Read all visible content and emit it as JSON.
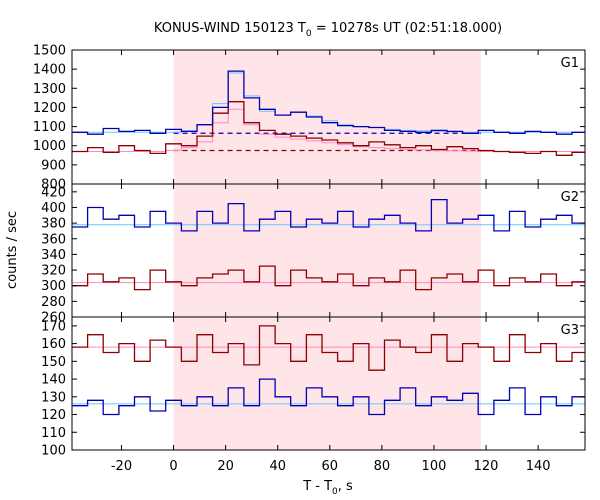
{
  "chart_data": {
    "type": "line",
    "title": "KONUS-WIND 150123 T0 = 10278s UT (02:51:18.000)",
    "title_parts": {
      "before": "KONUS-WIND 150123 T",
      "sub": "0",
      "after": " = 10278s UT (02:51:18.000)"
    },
    "xlabel": "T - T0, s",
    "xlabel_parts": {
      "before": "T - T",
      "sub": "0",
      "after": ", s"
    },
    "ylabel": "counts / sec",
    "xlim": [
      -39,
      158
    ],
    "x_ticks": [
      -20,
      0,
      20,
      40,
      60,
      80,
      100,
      120,
      140
    ],
    "highlight_interval": [
      0,
      118
    ],
    "colors": {
      "blue": "#0000b4",
      "red": "#8b0000",
      "light_blue": "#66c8ff",
      "pink": "#ff88cc",
      "highlight": "#ffe4e8"
    },
    "bin_edges": [
      -39,
      -33,
      -27,
      -21,
      -15,
      -9,
      -3,
      3,
      9,
      15,
      21,
      27,
      33,
      39,
      45,
      51,
      57,
      63,
      69,
      75,
      81,
      87,
      93,
      99,
      105,
      111,
      117,
      123,
      129,
      135,
      141,
      147,
      153,
      158
    ],
    "panels": [
      {
        "label": "G1",
        "ylim": [
          800,
          1500
        ],
        "y_ticks": [
          800,
          900,
          1000,
          1100,
          1200,
          1300,
          1400,
          1500
        ],
        "series": [
          {
            "color": "blue",
            "values": [
              1070,
              1060,
              1090,
              1075,
              1080,
              1065,
              1085,
              1075,
              1110,
              1200,
              1390,
              1250,
              1190,
              1160,
              1175,
              1150,
              1120,
              1105,
              1100,
              1095,
              1080,
              1075,
              1070,
              1080,
              1075,
              1065,
              1080,
              1070,
              1065,
              1075,
              1070,
              1060,
              1070
            ]
          },
          {
            "color": "red",
            "values": [
              970,
              990,
              965,
              1000,
              975,
              960,
              1010,
              1000,
              1050,
              1170,
              1230,
              1120,
              1080,
              1060,
              1050,
              1040,
              1030,
              1015,
              1000,
              1020,
              1005,
              990,
              1000,
              980,
              995,
              985,
              975,
              970,
              965,
              960,
              970,
              950,
              965
            ]
          },
          {
            "color": "light_blue",
            "values": [
              1070,
              1070,
              1070,
              1070,
              1070,
              1070,
              1070,
              1078,
              1110,
              1220,
              1380,
              1260,
              1180,
              1160,
              1175,
              1155,
              1130,
              1110,
              1100,
              1095,
              1085,
              1080,
              1078,
              1075,
              1072,
              1070,
              1070,
              1070,
              1070,
              1070,
              1070,
              1070,
              1070
            ]
          },
          {
            "color": "pink",
            "values": [
              970,
              970,
              970,
              970,
              970,
              970,
              975,
              990,
              1020,
              1120,
              1190,
              1110,
              1060,
              1045,
              1035,
              1025,
              1015,
              1005,
              995,
              990,
              985,
              980,
              978,
              975,
              974,
              972,
              970,
              970,
              970,
              970,
              970,
              970,
              970
            ]
          }
        ],
        "background_levels": [
          {
            "color": "blue",
            "value": 1065
          },
          {
            "color": "red",
            "value": 975
          }
        ]
      },
      {
        "label": "G2",
        "ylim": [
          260,
          430
        ],
        "y_ticks": [
          260,
          280,
          300,
          320,
          340,
          360,
          380,
          400,
          420
        ],
        "series": [
          {
            "color": "blue",
            "values": [
              375,
              400,
              385,
              390,
              375,
              395,
              380,
              370,
              395,
              380,
              405,
              370,
              385,
              395,
              375,
              385,
              380,
              395,
              375,
              385,
              390,
              380,
              370,
              410,
              380,
              385,
              390,
              370,
              395,
              375,
              385,
              390,
              380
            ]
          },
          {
            "color": "red",
            "values": [
              300,
              315,
              305,
              310,
              295,
              320,
              305,
              300,
              310,
              315,
              320,
              305,
              325,
              300,
              320,
              310,
              305,
              315,
              300,
              310,
              305,
              320,
              295,
              310,
              315,
              305,
              320,
              300,
              310,
              305,
              315,
              300,
              305
            ]
          },
          {
            "color": "light_blue",
            "values": [
              378,
              378,
              378,
              378,
              378,
              378,
              378,
              378,
              378,
              378,
              378,
              378,
              378,
              378,
              378,
              378,
              378,
              378,
              378,
              378,
              378,
              378,
              378,
              378,
              378,
              378,
              378,
              378,
              378,
              378,
              378,
              378,
              378
            ]
          },
          {
            "color": "pink",
            "values": [
              304,
              304,
              304,
              304,
              304,
              304,
              304,
              304,
              304,
              304,
              304,
              304,
              304,
              304,
              304,
              304,
              304,
              304,
              304,
              304,
              304,
              304,
              304,
              304,
              304,
              304,
              304,
              304,
              304,
              304,
              304,
              304,
              304
            ]
          }
        ],
        "background_levels": []
      },
      {
        "label": "G3",
        "ylim": [
          100,
          175
        ],
        "y_ticks": [
          100,
          110,
          120,
          130,
          140,
          150,
          160,
          170
        ],
        "series": [
          {
            "color": "blue",
            "values": [
              125,
              128,
              120,
              125,
              130,
              122,
              128,
              125,
              130,
              125,
              135,
              125,
              140,
              130,
              125,
              135,
              130,
              125,
              130,
              120,
              128,
              135,
              125,
              130,
              128,
              132,
              120,
              128,
              135,
              120,
              130,
              125,
              130
            ]
          },
          {
            "color": "red",
            "values": [
              158,
              165,
              155,
              160,
              150,
              162,
              158,
              150,
              165,
              155,
              160,
              148,
              170,
              160,
              150,
              165,
              155,
              150,
              160,
              145,
              162,
              158,
              155,
              165,
              150,
              160,
              158,
              150,
              165,
              155,
              160,
              150,
              155
            ]
          },
          {
            "color": "light_blue",
            "values": [
              126,
              126,
              126,
              126,
              126,
              126,
              126,
              126,
              126,
              126,
              126,
              126,
              126,
              126,
              126,
              126,
              126,
              126,
              126,
              126,
              126,
              126,
              126,
              126,
              126,
              126,
              126,
              126,
              126,
              126,
              126,
              126,
              126
            ]
          },
          {
            "color": "pink",
            "values": [
              158,
              158,
              158,
              158,
              158,
              158,
              158,
              158,
              158,
              158,
              158,
              158,
              158,
              158,
              158,
              158,
              158,
              158,
              158,
              158,
              158,
              158,
              158,
              158,
              158,
              158,
              158,
              158,
              158,
              158,
              158,
              158,
              158
            ]
          }
        ],
        "background_levels": []
      }
    ]
  }
}
